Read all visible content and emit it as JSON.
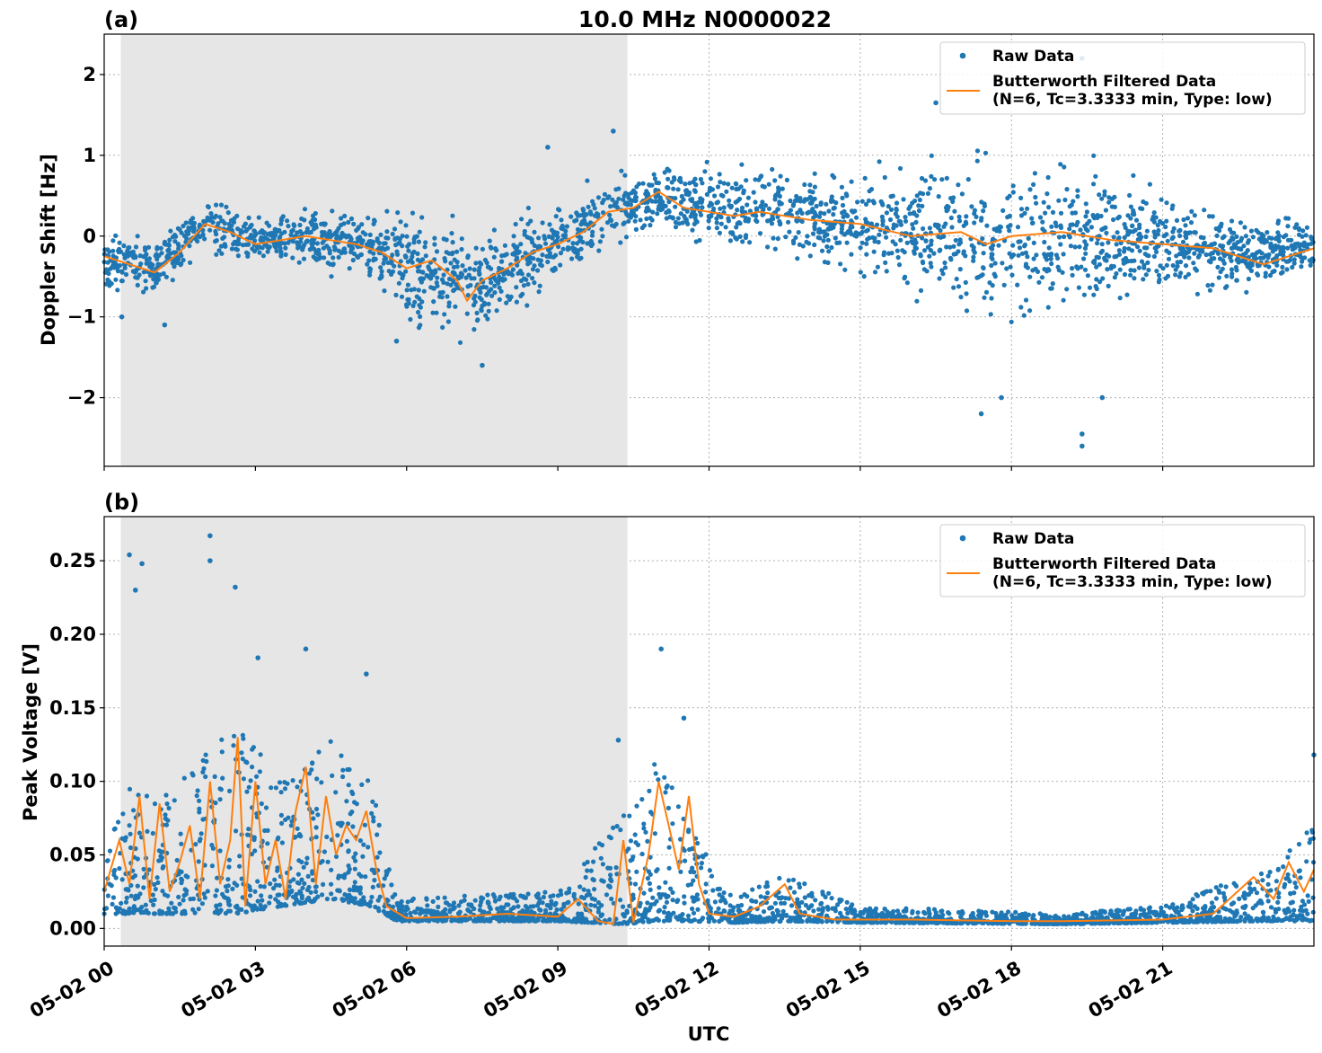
{
  "figure": {
    "title": "10.0 MHz N0000022",
    "xlabel": "UTC",
    "panel_labels": [
      "(a)",
      "(b)"
    ]
  },
  "chart_data": [
    {
      "type": "scatter",
      "panel": "(a)",
      "title": "10.0 MHz N0000022",
      "xlabel": "UTC",
      "ylabel": "Doppler Shift [Hz]",
      "xlim_hours": [
        0,
        24
      ],
      "ylim": [
        -2.85,
        2.5
      ],
      "xticks_hours": [
        0,
        3,
        6,
        9,
        12,
        15,
        18,
        21
      ],
      "xtick_labels": [
        "05-02 00",
        "05-02 03",
        "05-02 06",
        "05-02 09",
        "05-02 12",
        "05-02 15",
        "05-02 18",
        "05-02 21"
      ],
      "yticks": [
        2,
        1,
        0,
        -1,
        -2
      ],
      "ytick_labels": [
        "2",
        "1",
        "0",
        "−1",
        "−2"
      ],
      "shaded_region_hours": [
        0.33,
        10.38
      ],
      "grid": true,
      "legend_position": "top-right",
      "series": [
        {
          "name": "Raw Data",
          "kind": "points",
          "color": "#1f77b4",
          "envelope": [
            {
              "x": 0,
              "center": -0.3,
              "spread": 0.28
            },
            {
              "x": 1,
              "center": -0.4,
              "spread": 0.3
            },
            {
              "x": 2,
              "center": 0.15,
              "spread": 0.3
            },
            {
              "x": 3,
              "center": -0.05,
              "spread": 0.25
            },
            {
              "x": 4,
              "center": -0.05,
              "spread": 0.3
            },
            {
              "x": 5.5,
              "center": -0.15,
              "spread": 0.35
            },
            {
              "x": 6,
              "center": -0.35,
              "spread": 0.6
            },
            {
              "x": 7.2,
              "center": -0.65,
              "spread": 0.55
            },
            {
              "x": 8,
              "center": -0.4,
              "spread": 0.45
            },
            {
              "x": 9,
              "center": -0.05,
              "spread": 0.45
            },
            {
              "x": 10,
              "center": 0.3,
              "spread": 0.4
            },
            {
              "x": 11,
              "center": 0.45,
              "spread": 0.3
            },
            {
              "x": 12,
              "center": 0.35,
              "spread": 0.4
            },
            {
              "x": 13,
              "center": 0.35,
              "spread": 0.45
            },
            {
              "x": 15,
              "center": 0.15,
              "spread": 0.55
            },
            {
              "x": 17,
              "center": -0.05,
              "spread": 0.75
            },
            {
              "x": 18,
              "center": -0.05,
              "spread": 0.8
            },
            {
              "x": 19.5,
              "center": 0.0,
              "spread": 0.75
            },
            {
              "x": 21,
              "center": -0.05,
              "spread": 0.55
            },
            {
              "x": 22.5,
              "center": -0.2,
              "spread": 0.4
            },
            {
              "x": 24,
              "center": -0.15,
              "spread": 0.3
            }
          ],
          "outliers": [
            {
              "x": 0.35,
              "y": -1.0
            },
            {
              "x": 1.2,
              "y": -1.1
            },
            {
              "x": 5.8,
              "y": -1.3
            },
            {
              "x": 7.5,
              "y": -1.6
            },
            {
              "x": 8.8,
              "y": 1.1
            },
            {
              "x": 10.1,
              "y": 1.3
            },
            {
              "x": 16.5,
              "y": 1.65
            },
            {
              "x": 17.4,
              "y": -2.2
            },
            {
              "x": 19.4,
              "y": -2.6
            },
            {
              "x": 19.4,
              "y": -2.45
            },
            {
              "x": 19.4,
              "y": 2.2
            },
            {
              "x": 19.8,
              "y": -2.0
            },
            {
              "x": 17.8,
              "y": -2.0
            }
          ]
        },
        {
          "name": "Butterworth Filtered Data",
          "kind": "line",
          "color": "#ff7f0e",
          "x": [
            0,
            0.5,
            1.0,
            1.5,
            2.0,
            2.5,
            3.0,
            3.5,
            4.0,
            4.5,
            5.0,
            5.5,
            6.0,
            6.5,
            7.0,
            7.2,
            7.5,
            8.0,
            8.5,
            9.0,
            9.5,
            10.0,
            10.5,
            11.0,
            11.5,
            12.0,
            12.5,
            13.0,
            13.5,
            14.0,
            15.0,
            16.0,
            17.0,
            17.5,
            18.0,
            19.0,
            20.0,
            21.0,
            22.0,
            23.0,
            24.0
          ],
          "y": [
            -0.25,
            -0.35,
            -0.45,
            -0.2,
            0.15,
            0.05,
            -0.1,
            -0.05,
            0.0,
            -0.05,
            -0.1,
            -0.2,
            -0.4,
            -0.3,
            -0.55,
            -0.8,
            -0.55,
            -0.4,
            -0.2,
            -0.1,
            0.05,
            0.3,
            0.35,
            0.55,
            0.35,
            0.3,
            0.25,
            0.3,
            0.25,
            0.2,
            0.15,
            0.0,
            0.05,
            -0.1,
            0.0,
            0.05,
            -0.05,
            -0.1,
            -0.15,
            -0.35,
            -0.15
          ]
        }
      ]
    },
    {
      "type": "scatter",
      "panel": "(b)",
      "xlabel": "UTC",
      "ylabel": "Peak Voltage [V]",
      "xlim_hours": [
        0,
        24
      ],
      "ylim": [
        -0.012,
        0.28
      ],
      "xticks_hours": [
        0,
        3,
        6,
        9,
        12,
        15,
        18,
        21
      ],
      "xtick_labels": [
        "05-02 00",
        "05-02 03",
        "05-02 06",
        "05-02 09",
        "05-02 12",
        "05-02 15",
        "05-02 18",
        "05-02 21"
      ],
      "yticks": [
        0.25,
        0.2,
        0.15,
        0.1,
        0.05,
        0.0
      ],
      "ytick_labels": [
        "0.25",
        "0.20",
        "0.15",
        "0.10",
        "0.05",
        "0.00"
      ],
      "shaded_region_hours": [
        0.33,
        10.38
      ],
      "grid": true,
      "legend_position": "top-right",
      "series": [
        {
          "name": "Raw Data",
          "kind": "points",
          "color": "#1f77b4",
          "envelope": [
            {
              "x": 0,
              "low": 0.01,
              "high": 0.06
            },
            {
              "x": 0.5,
              "low": 0.01,
              "high": 0.1
            },
            {
              "x": 1.0,
              "low": 0.01,
              "high": 0.09
            },
            {
              "x": 2.0,
              "low": 0.01,
              "high": 0.12
            },
            {
              "x": 2.6,
              "low": 0.01,
              "high": 0.15
            },
            {
              "x": 3.5,
              "low": 0.015,
              "high": 0.1
            },
            {
              "x": 4.5,
              "low": 0.02,
              "high": 0.13
            },
            {
              "x": 5.3,
              "low": 0.015,
              "high": 0.1
            },
            {
              "x": 5.8,
              "low": 0.005,
              "high": 0.02
            },
            {
              "x": 9.0,
              "low": 0.005,
              "high": 0.025
            },
            {
              "x": 10.3,
              "low": 0.003,
              "high": 0.08
            },
            {
              "x": 11.0,
              "low": 0.005,
              "high": 0.12
            },
            {
              "x": 11.6,
              "low": 0.005,
              "high": 0.07
            },
            {
              "x": 12.5,
              "low": 0.004,
              "high": 0.02
            },
            {
              "x": 13.6,
              "low": 0.005,
              "high": 0.04
            },
            {
              "x": 15,
              "low": 0.004,
              "high": 0.015
            },
            {
              "x": 19,
              "low": 0.003,
              "high": 0.01
            },
            {
              "x": 21,
              "low": 0.004,
              "high": 0.015
            },
            {
              "x": 23,
              "low": 0.005,
              "high": 0.04
            },
            {
              "x": 24,
              "low": 0.005,
              "high": 0.07
            }
          ],
          "outliers": [
            {
              "x": 0.5,
              "y": 0.254
            },
            {
              "x": 0.75,
              "y": 0.248
            },
            {
              "x": 0.62,
              "y": 0.23
            },
            {
              "x": 2.1,
              "y": 0.267
            },
            {
              "x": 2.1,
              "y": 0.25
            },
            {
              "x": 2.6,
              "y": 0.232
            },
            {
              "x": 3.05,
              "y": 0.184
            },
            {
              "x": 4.0,
              "y": 0.19
            },
            {
              "x": 5.2,
              "y": 0.173
            },
            {
              "x": 10.2,
              "y": 0.128
            },
            {
              "x": 11.05,
              "y": 0.19
            },
            {
              "x": 11.5,
              "y": 0.143
            },
            {
              "x": 24.0,
              "y": 0.118
            }
          ]
        },
        {
          "name": "Butterworth Filtered Data",
          "kind": "line",
          "color": "#ff7f0e",
          "x": [
            0,
            0.3,
            0.5,
            0.7,
            0.9,
            1.1,
            1.3,
            1.5,
            1.7,
            1.9,
            2.1,
            2.3,
            2.5,
            2.65,
            2.8,
            3.0,
            3.2,
            3.4,
            3.6,
            3.8,
            4.0,
            4.2,
            4.4,
            4.6,
            4.8,
            5.0,
            5.2,
            5.4,
            5.6,
            6.0,
            7.0,
            8.0,
            9.0,
            9.4,
            9.8,
            10.1,
            10.3,
            10.5,
            10.8,
            11.0,
            11.2,
            11.4,
            11.6,
            11.8,
            12.0,
            12.5,
            13.0,
            13.5,
            13.8,
            14.5,
            16.0,
            18.0,
            19.0,
            21.0,
            22.0,
            22.8,
            23.2,
            23.5,
            23.8,
            24.0
          ],
          "y": [
            0.025,
            0.06,
            0.03,
            0.09,
            0.02,
            0.085,
            0.025,
            0.045,
            0.07,
            0.02,
            0.1,
            0.03,
            0.06,
            0.13,
            0.015,
            0.1,
            0.03,
            0.06,
            0.02,
            0.08,
            0.11,
            0.03,
            0.09,
            0.05,
            0.07,
            0.06,
            0.08,
            0.04,
            0.015,
            0.007,
            0.008,
            0.01,
            0.008,
            0.02,
            0.005,
            0.003,
            0.06,
            0.004,
            0.05,
            0.1,
            0.07,
            0.04,
            0.09,
            0.03,
            0.01,
            0.008,
            0.015,
            0.03,
            0.01,
            0.006,
            0.006,
            0.005,
            0.005,
            0.006,
            0.01,
            0.035,
            0.02,
            0.045,
            0.025,
            0.04
          ]
        }
      ]
    }
  ],
  "legend": {
    "raw_label": "Raw Data",
    "filtered_label_line1": "Butterworth Filtered Data",
    "filtered_label_line2": "(N=6, Tc=3.3333 min, Type: low)"
  }
}
